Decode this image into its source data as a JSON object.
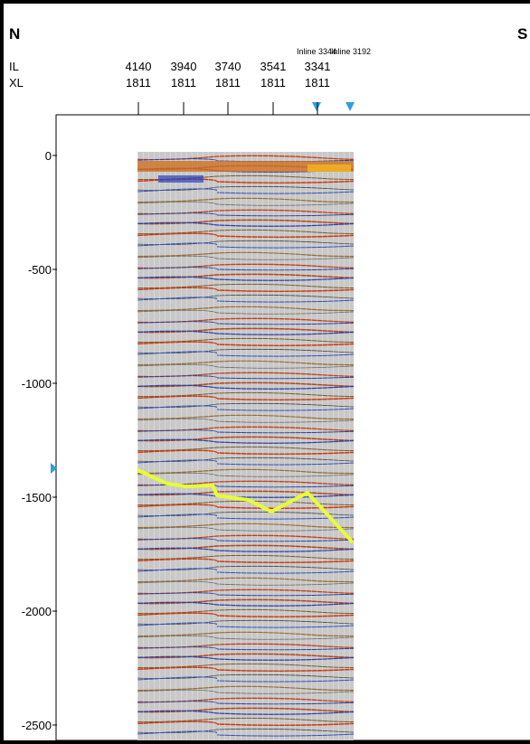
{
  "header": {
    "north": "N",
    "south": "S",
    "il_label": "IL",
    "xl_label": "XL",
    "inline_markers": [
      "Inline 3344",
      "Inline 3192"
    ],
    "traces": [
      {
        "il": "4140",
        "xl": "1811"
      },
      {
        "il": "3940",
        "xl": "1811"
      },
      {
        "il": "3740",
        "xl": "1811"
      },
      {
        "il": "3541",
        "xl": "1811"
      },
      {
        "il": "3341",
        "xl": "1811"
      }
    ]
  },
  "axis": {
    "ylim": [
      0,
      -2500
    ],
    "yticks": [
      0,
      -500,
      -1000,
      -1500,
      -2000,
      -2500
    ]
  }
}
